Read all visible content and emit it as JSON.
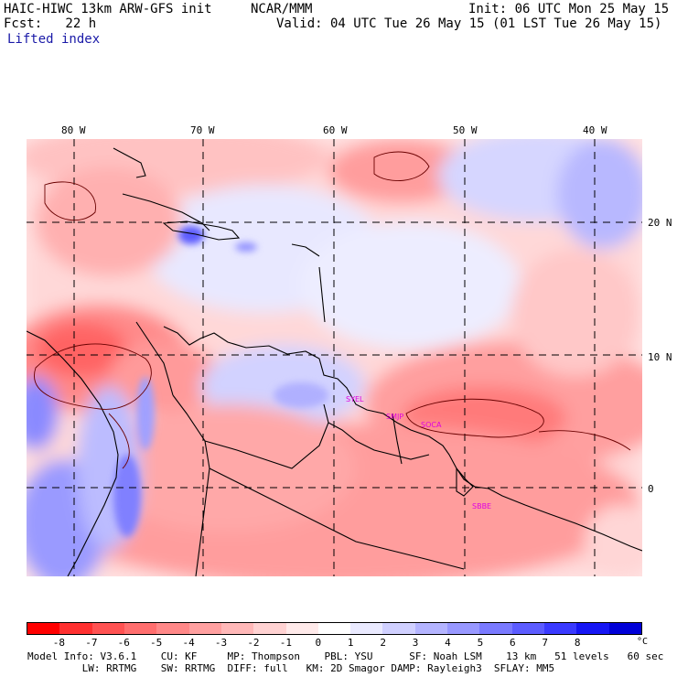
{
  "header": {
    "model": "HAIC-HIWC 13km ARW-GFS init",
    "org": "NCAR/MMM",
    "init": "Init: 06 UTC Mon 25 May 15",
    "fcst": "Fcst:   22 h",
    "valid": "Valid: 04 UTC Tue 26 May 15 (01 LST Tue 26 May 15)",
    "field": "Lifted index"
  },
  "longitude_labels": [
    "80 W",
    "70 W",
    "60 W",
    "50 W",
    "40 W"
  ],
  "latitude_labels": [
    "20 N",
    "10 N",
    "0"
  ],
  "stations": [
    "SYEL",
    "SMJP",
    "SOCA",
    "SBBE"
  ],
  "colorbar": {
    "ticks": [
      "-8",
      "-7",
      "-6",
      "-5",
      "-4",
      "-3",
      "-2",
      "-1",
      "0",
      "1",
      "2",
      "3",
      "4",
      "5",
      "6",
      "7",
      "8"
    ],
    "unit": "°C",
    "colors": [
      "#ff0000",
      "#ff3030",
      "#ff5252",
      "#ff6e6e",
      "#ff8888",
      "#ffa0a0",
      "#ffb8b8",
      "#ffd2d2",
      "#ffeaea",
      "#ffffff",
      "#eaeaff",
      "#d0d0ff",
      "#b4b4ff",
      "#9898ff",
      "#7a7aff",
      "#5c5cff",
      "#3a3aff",
      "#1616f4",
      "#0000d8"
    ]
  },
  "footer": {
    "line1": "Model Info: V3.6.1    CU: KF     MP: Thompson    PBL: YSU      SF: Noah LSM    13 km   51 levels   60 sec",
    "line2": "         LW: RRTMG    SW: RRTMG  DIFF: full   KM: 2D Smagor DAMP: Rayleigh3  SFLAY: MM5"
  },
  "colors": {
    "accent": "#1a1aa8",
    "station": "#e000e0"
  }
}
